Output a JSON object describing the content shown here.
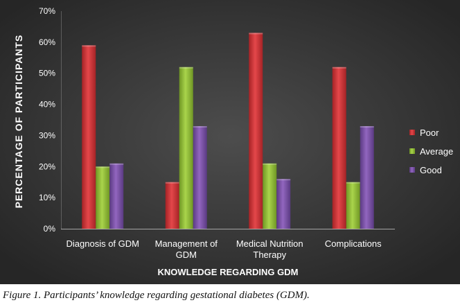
{
  "caption": "Figure 1. Participants’ knowledge regarding gestational diabetes (GDM).",
  "chart_data": {
    "type": "bar",
    "title": "",
    "xlabel": "KNOWLEDGE REGARDING GDM",
    "ylabel": "PERCENTAGE OF PARTICIPANTS",
    "categories": [
      [
        "Diagnosis of GDM"
      ],
      [
        "Management of",
        "GDM"
      ],
      [
        "Medical Nutrition",
        "Therapy"
      ],
      [
        "Complications"
      ]
    ],
    "series": [
      {
        "name": "Poor",
        "values": [
          59,
          15,
          63,
          52
        ]
      },
      {
        "name": "Average",
        "values": [
          20,
          52,
          21,
          15
        ]
      },
      {
        "name": "Good",
        "values": [
          21,
          33,
          16,
          33
        ]
      }
    ],
    "ylim": [
      0,
      70
    ],
    "yticks": [
      "0%",
      "10%",
      "20%",
      "30%",
      "40%",
      "50%",
      "60%",
      "70%"
    ],
    "legend": "right",
    "grid": false,
    "colors": {
      "Poor": "#d7393c",
      "Average": "#94c23a",
      "Good": "#7d54a8",
      "background_center": "#4d4d4d",
      "background_edge": "#262626",
      "text": "#ffffff",
      "axis": "#a6a6a6"
    }
  }
}
